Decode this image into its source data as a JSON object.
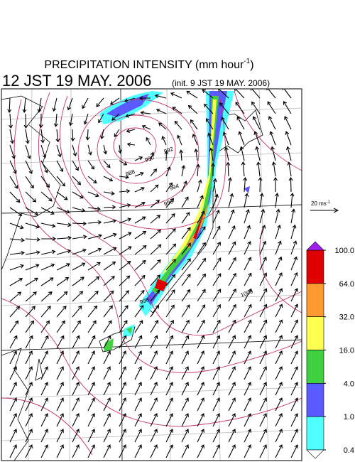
{
  "title": {
    "main": "PRECIPITATION INTENSITY (mm hour",
    "sup": "-1",
    "end": ")"
  },
  "valid_time": "12 JST 19 MAY. 2006",
  "init_time": "(init. 9 JST 19 MAY. 2006)",
  "vector_legend": {
    "label": "20 ms",
    "sup": "-1"
  },
  "isobar_labels": [
    "988",
    "990",
    "992",
    "994",
    "996",
    "998",
    "1000"
  ],
  "colorbar": {
    "ticks": [
      {
        "value": 100,
        "label": "100.0"
      },
      {
        "value": 64,
        "label": "64.0"
      },
      {
        "value": 32,
        "label": "32.0"
      },
      {
        "value": 16,
        "label": "16.0"
      },
      {
        "value": 4,
        "label": "4.0"
      },
      {
        "value": 1,
        "label": "1.0"
      },
      {
        "value": 0.4,
        "label": "0.4"
      }
    ],
    "colors": [
      "#e00000",
      "#ff9a30",
      "#ffff50",
      "#40d040",
      "#5a5aff",
      "#50ffff"
    ],
    "over_color": "#a020f0",
    "under_color": "#ffffff"
  }
}
